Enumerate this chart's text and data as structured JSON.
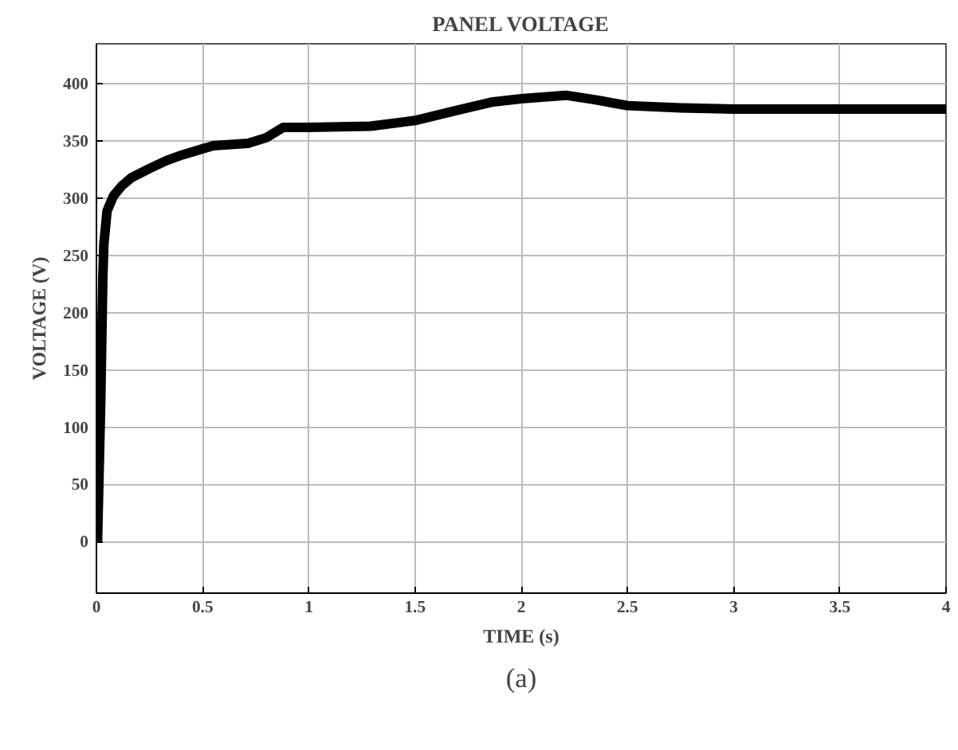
{
  "chart_data": {
    "type": "line",
    "title": "PANEL VOLTAGE",
    "xlabel": "TIME (s)",
    "ylabel": "VOLTAGE (V)",
    "annotations": [
      "(a)"
    ],
    "xlim": [
      0,
      4
    ],
    "ylim": [
      -45,
      435
    ],
    "xticks": [
      0,
      0.5,
      1,
      1.5,
      2,
      2.5,
      3,
      3.5,
      4
    ],
    "yticks": [
      0,
      50,
      100,
      150,
      200,
      250,
      300,
      350,
      400
    ],
    "grid": true,
    "series": [
      {
        "color": "#000000",
        "x": [
          0.005,
          0.02,
          0.03,
          0.035,
          0.05,
          0.08,
          0.12,
          0.165,
          0.25,
          0.33,
          0.405,
          0.55,
          0.714,
          0.8,
          0.88,
          1.0,
          1.29,
          1.5,
          1.7,
          1.86,
          2.0,
          2.21,
          2.35,
          2.5,
          2.75,
          3.0,
          3.5,
          4.0
        ],
        "values": [
          0,
          120,
          230,
          260,
          289,
          302,
          311,
          318,
          326,
          333,
          338,
          346,
          348,
          353,
          362,
          362,
          363,
          368,
          377,
          384,
          387,
          390,
          386,
          381,
          379,
          378,
          378,
          378
        ]
      }
    ]
  }
}
